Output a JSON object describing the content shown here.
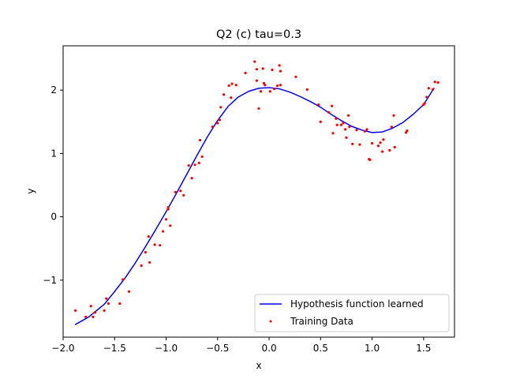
{
  "chart_data": {
    "type": "line+scatter",
    "title": "Q2 (c)  tau=0.3",
    "xlabel": "x",
    "ylabel": "y",
    "xlim": [
      -2.0,
      1.8
    ],
    "ylim": [
      -1.9,
      2.7
    ],
    "x_ticks": [
      -2.0,
      -1.5,
      -1.0,
      -0.5,
      0.0,
      0.5,
      1.0,
      1.5
    ],
    "x_tick_labels": [
      "−2.0",
      "−1.5",
      "−1.0",
      "−0.5",
      "0.0",
      "0.5",
      "1.0",
      "1.5"
    ],
    "y_ticks": [
      -1,
      0,
      1,
      2
    ],
    "y_tick_labels": [
      "−1",
      "0",
      "1",
      "2"
    ],
    "grid": false,
    "legend_position": "bottom-right",
    "colors": {
      "hypothesis": "#0000ff",
      "training": "#ff0000"
    },
    "series": [
      {
        "name": "Hypothesis function learned",
        "kind": "line",
        "points": [
          [
            -1.88,
            -1.7
          ],
          [
            -1.75,
            -1.58
          ],
          [
            -1.6,
            -1.38
          ],
          [
            -1.5,
            -1.18
          ],
          [
            -1.4,
            -0.97
          ],
          [
            -1.3,
            -0.73
          ],
          [
            -1.2,
            -0.47
          ],
          [
            -1.1,
            -0.2
          ],
          [
            -1.0,
            0.08
          ],
          [
            -0.9,
            0.37
          ],
          [
            -0.8,
            0.67
          ],
          [
            -0.7,
            0.97
          ],
          [
            -0.6,
            1.26
          ],
          [
            -0.5,
            1.52
          ],
          [
            -0.4,
            1.74
          ],
          [
            -0.3,
            1.89
          ],
          [
            -0.2,
            1.98
          ],
          [
            -0.1,
            2.03
          ],
          [
            0.0,
            2.04
          ],
          [
            0.1,
            2.02
          ],
          [
            0.2,
            1.97
          ],
          [
            0.3,
            1.9
          ],
          [
            0.4,
            1.82
          ],
          [
            0.5,
            1.73
          ],
          [
            0.6,
            1.62
          ],
          [
            0.7,
            1.52
          ],
          [
            0.8,
            1.43
          ],
          [
            0.9,
            1.37
          ],
          [
            1.0,
            1.33
          ],
          [
            1.1,
            1.34
          ],
          [
            1.2,
            1.4
          ],
          [
            1.3,
            1.49
          ],
          [
            1.4,
            1.62
          ],
          [
            1.5,
            1.77
          ],
          [
            1.6,
            2.03
          ]
        ]
      },
      {
        "name": "Training Data",
        "kind": "scatter",
        "points": [
          [
            -1.88,
            -1.48
          ],
          [
            -1.78,
            -1.58
          ],
          [
            -1.73,
            -1.41
          ],
          [
            -1.71,
            -1.58
          ],
          [
            -1.69,
            -1.51
          ],
          [
            -1.6,
            -1.48
          ],
          [
            -1.58,
            -1.29
          ],
          [
            -1.56,
            -1.37
          ],
          [
            -1.45,
            -1.37
          ],
          [
            -1.42,
            -0.99
          ],
          [
            -1.36,
            -1.18
          ],
          [
            -1.24,
            -0.77
          ],
          [
            -1.2,
            -0.56
          ],
          [
            -1.17,
            -0.31
          ],
          [
            -1.16,
            -0.72
          ],
          [
            -1.11,
            -0.44
          ],
          [
            -1.06,
            -0.45
          ],
          [
            -1.03,
            -0.23
          ],
          [
            -1.0,
            -0.04
          ],
          [
            -0.98,
            0.12
          ],
          [
            -0.98,
            0.15
          ],
          [
            -0.96,
            -0.14
          ],
          [
            -0.91,
            0.39
          ],
          [
            -0.86,
            0.41
          ],
          [
            -0.83,
            0.34
          ],
          [
            -0.78,
            0.81
          ],
          [
            -0.75,
            0.61
          ],
          [
            -0.72,
            0.82
          ],
          [
            -0.68,
            0.85
          ],
          [
            -0.67,
            1.21
          ],
          [
            -0.65,
            0.95
          ],
          [
            -0.55,
            1.42
          ],
          [
            -0.5,
            1.48
          ],
          [
            -0.48,
            1.53
          ],
          [
            -0.47,
            1.73
          ],
          [
            -0.44,
            1.93
          ],
          [
            -0.39,
            2.07
          ],
          [
            -0.37,
            1.88
          ],
          [
            -0.36,
            2.1
          ],
          [
            -0.32,
            2.08
          ],
          [
            -0.23,
            2.27
          ],
          [
            -0.14,
            2.45
          ],
          [
            -0.12,
            2.33
          ],
          [
            -0.12,
            2.15
          ],
          [
            -0.1,
            1.71
          ],
          [
            -0.08,
            1.98
          ],
          [
            -0.06,
            2.34
          ],
          [
            -0.05,
            2.11
          ],
          [
            -0.04,
            2.08
          ],
          [
            0.01,
            1.98
          ],
          [
            0.03,
            2.32
          ],
          [
            0.05,
            2.02
          ],
          [
            0.08,
            2.07
          ],
          [
            0.1,
            2.39
          ],
          [
            0.11,
            2.3
          ],
          [
            0.11,
            2.08
          ],
          [
            0.26,
            2.21
          ],
          [
            0.37,
            2.01
          ],
          [
            0.48,
            1.77
          ],
          [
            0.5,
            1.5
          ],
          [
            0.58,
            1.65
          ],
          [
            0.61,
            1.75
          ],
          [
            0.62,
            1.32
          ],
          [
            0.65,
            1.55
          ],
          [
            0.66,
            1.45
          ],
          [
            0.7,
            1.45
          ],
          [
            0.72,
            1.48
          ],
          [
            0.74,
            1.38
          ],
          [
            0.75,
            1.25
          ],
          [
            0.77,
            1.6
          ],
          [
            0.78,
            1.42
          ],
          [
            0.81,
            1.15
          ],
          [
            0.85,
            1.37
          ],
          [
            0.88,
            1.14
          ],
          [
            0.93,
            1.35
          ],
          [
            0.95,
            1.38
          ],
          [
            0.97,
            0.91
          ],
          [
            0.98,
            0.9
          ],
          [
            1.0,
            1.16
          ],
          [
            1.06,
            1.12
          ],
          [
            1.08,
            1.17
          ],
          [
            1.1,
            1.03
          ],
          [
            1.11,
            1.22
          ],
          [
            1.17,
            1.05
          ],
          [
            1.19,
            1.42
          ],
          [
            1.21,
            1.6
          ],
          [
            1.22,
            1.1
          ],
          [
            1.33,
            1.33
          ],
          [
            1.34,
            1.36
          ],
          [
            1.5,
            1.77
          ],
          [
            1.51,
            1.79
          ],
          [
            1.53,
            1.89
          ],
          [
            1.55,
            2.03
          ],
          [
            1.59,
            2.01
          ],
          [
            1.61,
            2.13
          ],
          [
            1.64,
            2.12
          ]
        ]
      }
    ]
  }
}
